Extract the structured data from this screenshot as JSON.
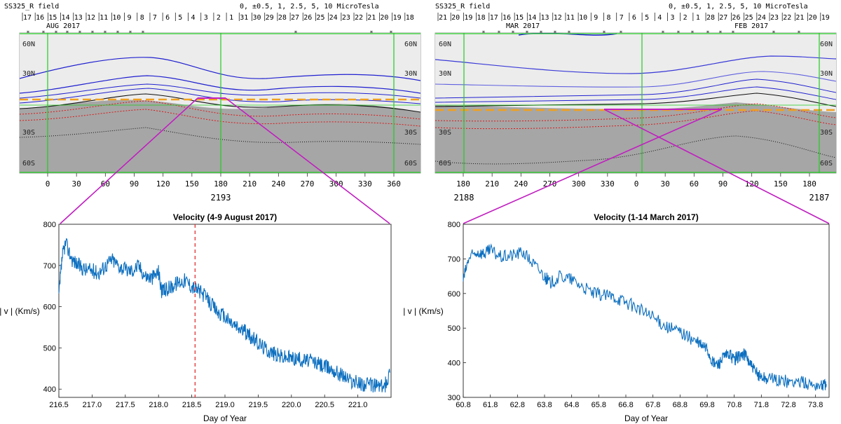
{
  "chart_data": [
    {
      "type": "heatmap",
      "panel": "synoptic-map-left",
      "title": "SS325_R field",
      "contour_levels_label": "0, ±0.5, 1, 2.5, 5, 10 MicroTesla",
      "rotation_number": "2193",
      "month_label": "AUG 2017",
      "date_ticks": [
        "17",
        "16",
        "15",
        "14",
        "13",
        "12",
        "11",
        "10",
        "9",
        "8",
        "7",
        "6",
        "5",
        "4",
        "3",
        "2",
        "1",
        "31",
        "30",
        "29",
        "28",
        "27",
        "26",
        "25",
        "24",
        "23",
        "22",
        "21",
        "20",
        "19",
        "18"
      ],
      "longitude_ticks": [
        "0",
        "30",
        "60",
        "90",
        "120",
        "150",
        "180",
        "210",
        "240",
        "270",
        "300",
        "330",
        "360"
      ],
      "lat_labels_left": [
        "60N",
        "30N",
        "30S",
        "60S"
      ],
      "lat_labels_right": [
        "60N",
        "30N",
        "30S",
        "60S"
      ],
      "colors": {
        "field_neg": "#a9a9a9",
        "field_pos": "#ececec",
        "contour_pos": "#1a1ad8",
        "contour_neg": "#d81a1a",
        "neutral": "#111111",
        "spacecraft": "#f0a020",
        "grid": "#22cc22",
        "link": "#c020c0"
      }
    },
    {
      "type": "heatmap",
      "panel": "synoptic-map-right",
      "title": "SS325_R field",
      "contour_levels_label": "0, ±0.5, 1, 2.5, 5, 10 MicroTesla",
      "rotation_number_left": "2188",
      "rotation_number_right": "2187",
      "month_label_left": "MAR 2017",
      "month_label_right": "FEB 2017",
      "date_ticks": [
        "21",
        "20",
        "19",
        "18",
        "17",
        "16",
        "15",
        "14",
        "13",
        "12",
        "11",
        "10",
        "9",
        "8",
        "7",
        "6",
        "5",
        "4",
        "3",
        "2",
        "1",
        "28",
        "27",
        "26",
        "25",
        "24",
        "23",
        "22",
        "21",
        "20",
        "19"
      ],
      "longitude_ticks": [
        "180",
        "210",
        "240",
        "270",
        "300",
        "330",
        "0",
        "30",
        "60",
        "90",
        "120",
        "150",
        "180"
      ],
      "lat_labels_left": [
        "60N",
        "30N",
        "30S",
        "60S"
      ],
      "lat_labels_right": [
        "60N",
        "30N",
        "30S",
        "60S"
      ]
    },
    {
      "type": "line",
      "panel": "velocity-august",
      "title": "Velocity (4-9 August 2017)",
      "xlabel": "Day of Year",
      "ylabel": "| v | (Km/s)",
      "xlim": [
        216.5,
        221.5
      ],
      "ylim": [
        380,
        800
      ],
      "xticks": [
        "216.5",
        "217.0",
        "217.5",
        "218.0",
        "218.5",
        "219.0",
        "219.5",
        "220.0",
        "220.5",
        "221.0"
      ],
      "yticks": [
        "400",
        "500",
        "600",
        "700",
        "800"
      ],
      "marker_line_x": 218.55,
      "series": [
        {
          "name": "velocity",
          "color": "#0d6fbf",
          "x": [
            216.5,
            216.55,
            216.6,
            216.7,
            216.8,
            216.9,
            217.0,
            217.1,
            217.2,
            217.3,
            217.4,
            217.5,
            217.6,
            217.7,
            217.8,
            217.9,
            218.0,
            218.05,
            218.1,
            218.2,
            218.3,
            218.4,
            218.5,
            218.6,
            218.7,
            218.8,
            218.9,
            219.0,
            219.1,
            219.2,
            219.3,
            219.4,
            219.5,
            219.6,
            219.7,
            219.8,
            219.9,
            220.0,
            220.1,
            220.2,
            220.3,
            220.4,
            220.5,
            220.6,
            220.7,
            220.8,
            220.9,
            221.0,
            221.1,
            221.2,
            221.3,
            221.4,
            221.48
          ],
          "values": [
            625,
            720,
            755,
            715,
            700,
            690,
            688,
            682,
            700,
            715,
            700,
            690,
            688,
            700,
            675,
            670,
            685,
            635,
            640,
            650,
            660,
            665,
            650,
            640,
            625,
            605,
            585,
            575,
            560,
            548,
            540,
            525,
            512,
            500,
            490,
            482,
            478,
            476,
            474,
            470,
            468,
            462,
            455,
            450,
            440,
            432,
            420,
            415,
            412,
            410,
            410,
            405,
            440
          ]
        }
      ]
    },
    {
      "type": "line",
      "panel": "velocity-march",
      "title": "Velocity (1-14 March 2017)",
      "xlabel": "Day of Year",
      "ylabel": "| v | (Km/s)",
      "xlim": [
        60.8,
        74.3
      ],
      "ylim": [
        300,
        800
      ],
      "xticks": [
        "60.8",
        "61.8",
        "62.8",
        "63.8",
        "64.8",
        "65.8",
        "66.8",
        "67.8",
        "68.8",
        "69.8",
        "70.8",
        "71.8",
        "72.8",
        "73.8"
      ],
      "yticks": [
        "300",
        "400",
        "500",
        "600",
        "700",
        "800"
      ],
      "series": [
        {
          "name": "velocity",
          "color": "#0d6fbf",
          "x": [
            60.8,
            61.0,
            61.3,
            61.6,
            61.8,
            62.2,
            62.6,
            63.0,
            63.4,
            63.8,
            64.0,
            64.4,
            64.8,
            65.2,
            65.6,
            66.0,
            66.4,
            66.8,
            67.2,
            67.6,
            68.0,
            68.4,
            68.8,
            69.2,
            69.5,
            69.8,
            70.0,
            70.2,
            70.4,
            70.6,
            70.8,
            71.0,
            71.2,
            71.4,
            71.6,
            71.8,
            72.0,
            72.4,
            72.8,
            73.2,
            73.6,
            74.0,
            74.2
          ],
          "values": [
            640,
            700,
            720,
            715,
            725,
            705,
            710,
            720,
            685,
            650,
            630,
            650,
            640,
            620,
            600,
            595,
            590,
            575,
            560,
            540,
            520,
            500,
            490,
            470,
            455,
            440,
            400,
            395,
            415,
            425,
            410,
            420,
            425,
            395,
            370,
            360,
            355,
            350,
            345,
            345,
            338,
            335,
            338
          ]
        }
      ]
    }
  ]
}
